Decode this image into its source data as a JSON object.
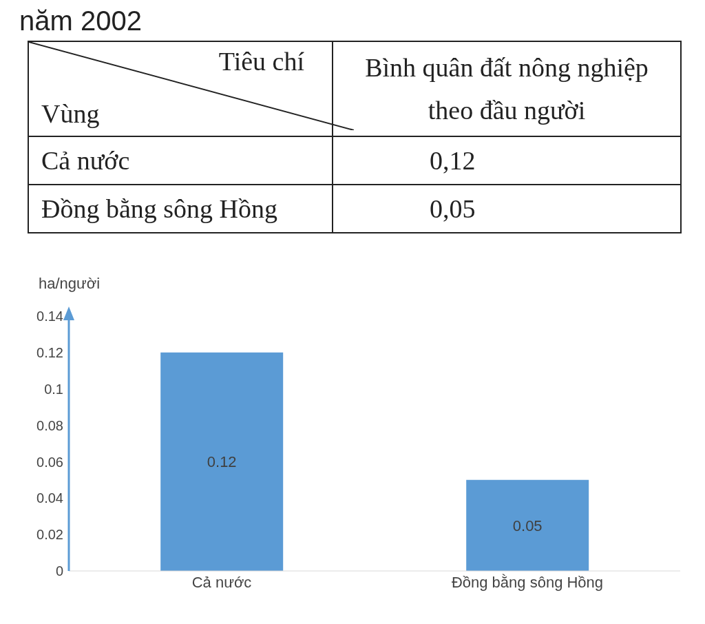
{
  "chart_data": {
    "type": "bar",
    "title": "năm 2002",
    "ylabel": "ha/người",
    "categories": [
      "Cả nước",
      "Đồng bằng sông Hồng"
    ],
    "values": [
      0.12,
      0.05
    ],
    "color": "#5b9bd5",
    "ylim": [
      0,
      0.14
    ],
    "yticks": [
      0,
      0.02,
      0.04,
      0.06,
      0.08,
      0.1,
      0.12,
      0.14
    ],
    "grid": false,
    "data_labels": true,
    "annotations": [
      "Tiêu chí",
      "Vùng",
      "Bình quân đất nông nghiệp theo đầu người",
      "0,12",
      "0,05"
    ]
  }
}
